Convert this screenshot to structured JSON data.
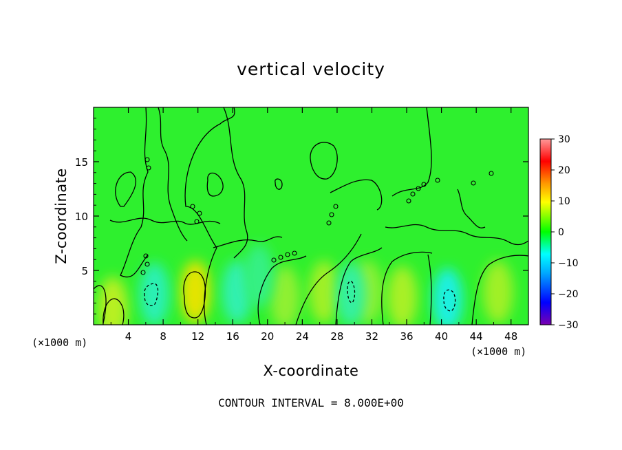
{
  "chart_data": {
    "type": "heatmap",
    "title": "vertical velocity",
    "xlabel": "X-coordinate",
    "ylabel": "Z-coordinate",
    "x_unit_label": "(×1000 m)",
    "x_unit_label_right": "(×1000 m)",
    "xlim": [
      0,
      50
    ],
    "ylim": [
      0,
      20
    ],
    "xticks": [
      4,
      8,
      12,
      16,
      20,
      24,
      28,
      32,
      36,
      40,
      44,
      48
    ],
    "yticks": [
      5,
      10,
      15
    ],
    "colorbar": {
      "range": [
        -30,
        30
      ],
      "ticks": [
        30,
        20,
        10,
        0,
        -10,
        -20,
        -30
      ],
      "colors": [
        "#7a00b0",
        "#0000ff",
        "#00aaff",
        "#00ffff",
        "#00ff00",
        "#ffff00",
        "#ff9900",
        "#ff0000",
        "#ff9999"
      ]
    },
    "background_color": "#2ef02e",
    "features": [
      {
        "x": 11.7,
        "y": 3.0,
        "value": 11,
        "color": "#e4e400"
      },
      {
        "x": 2.2,
        "y": 1.5,
        "value": 6,
        "color": "#b8f020"
      },
      {
        "x": 35.5,
        "y": 2.5,
        "value": 6,
        "color": "#a8f028"
      },
      {
        "x": 26.5,
        "y": 3.0,
        "value": 5,
        "color": "#a0f028"
      },
      {
        "x": 31.5,
        "y": 3.0,
        "value": 4,
        "color": "#90f030"
      },
      {
        "x": 46.5,
        "y": 3.0,
        "value": 5,
        "color": "#a0f028"
      },
      {
        "x": 22.0,
        "y": 2.5,
        "value": 4,
        "color": "#90f030"
      },
      {
        "x": 7.0,
        "y": 2.8,
        "value": -7,
        "color": "#2cf0b4"
      },
      {
        "x": 29.6,
        "y": 2.8,
        "value": -5,
        "color": "#34f0a0"
      },
      {
        "x": 40.7,
        "y": 2.3,
        "value": -10,
        "color": "#1ef0e0"
      },
      {
        "x": 16.5,
        "y": 3.0,
        "value": -6,
        "color": "#30f0b0"
      },
      {
        "x": 19.0,
        "y": 4.5,
        "value": -3,
        "color": "#34f084"
      }
    ],
    "contour_interval": "CONTOUR INTERVAL = 8.000E+00"
  }
}
